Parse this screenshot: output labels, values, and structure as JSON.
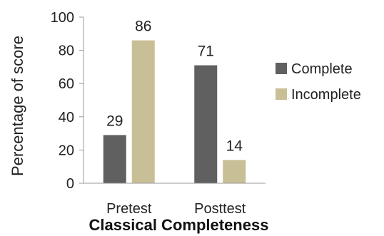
{
  "chart_data": {
    "type": "bar",
    "categories": [
      "Pretest",
      "Posttest"
    ],
    "series": [
      {
        "name": "Complete",
        "values": [
          29,
          71
        ],
        "color": "#606060"
      },
      {
        "name": "Incomplete",
        "values": [
          86,
          14
        ],
        "color": "#c8bf96"
      }
    ],
    "xlabel": "Classical Completeness",
    "ylabel": "Percentage of score",
    "ylim": [
      0,
      100
    ],
    "yticks": [
      0,
      20,
      40,
      60,
      80,
      100
    ],
    "grid": false,
    "legend_position": "right"
  }
}
